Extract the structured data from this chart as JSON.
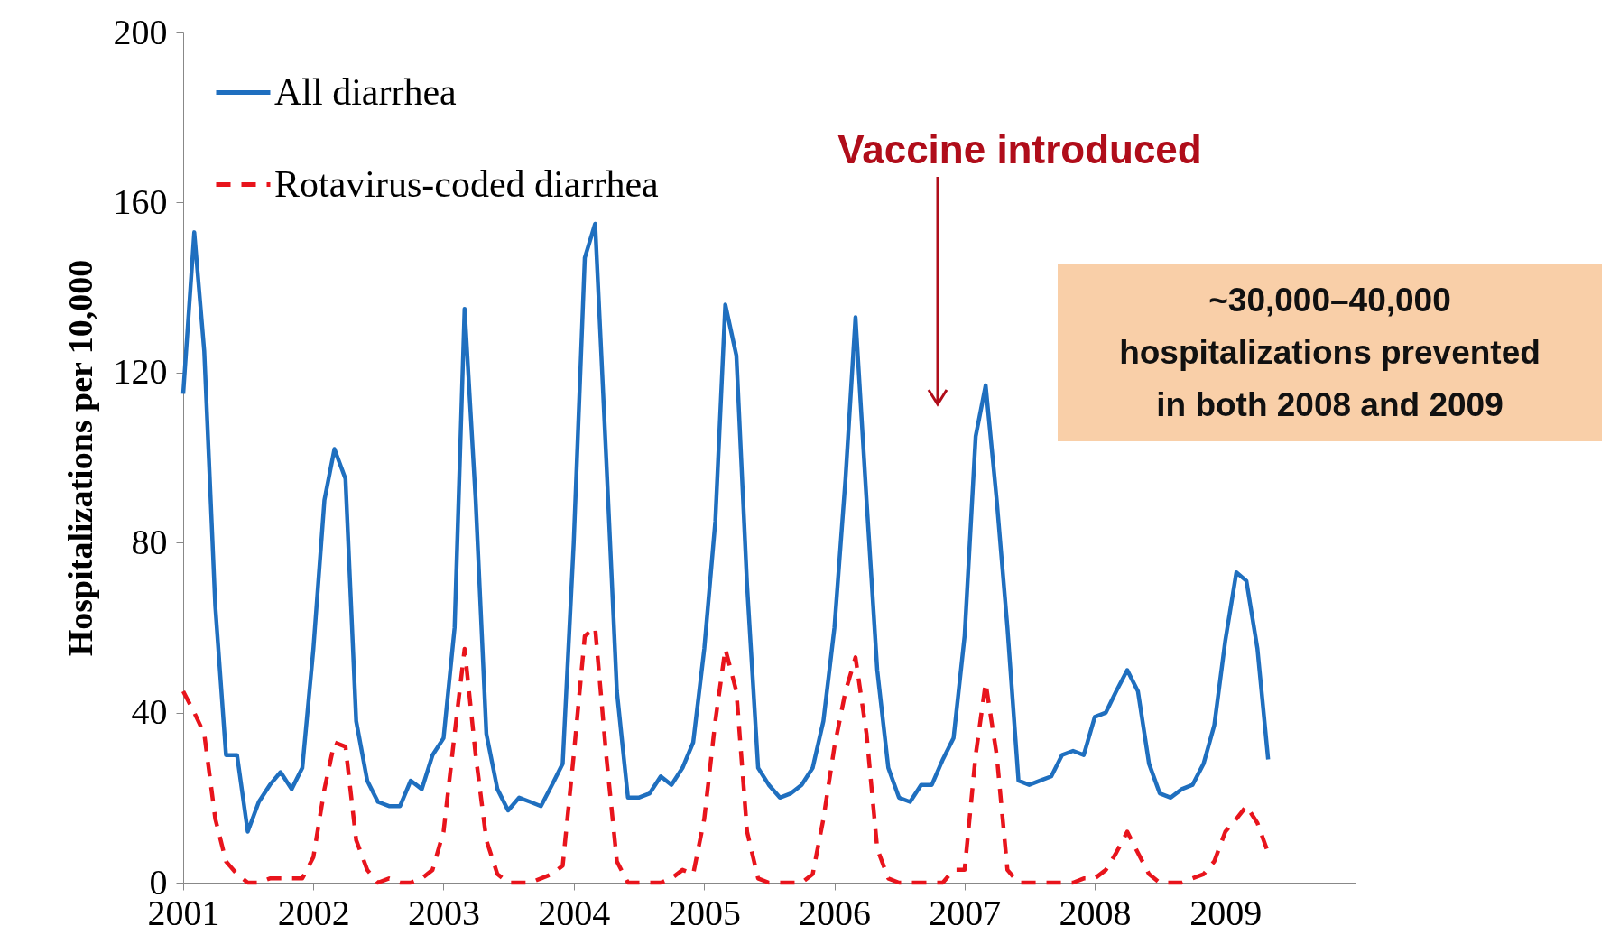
{
  "chart_data": {
    "type": "line",
    "ylabel": "Hospitalizations per 10,000",
    "x": [
      "2001-01",
      "2001-02",
      "2001-03",
      "2001-04",
      "2001-05",
      "2001-06",
      "2001-07",
      "2001-08",
      "2001-09",
      "2001-10",
      "2001-11",
      "2001-12",
      "2002-01",
      "2002-02",
      "2002-03",
      "2002-04",
      "2002-05",
      "2002-06",
      "2002-07",
      "2002-08",
      "2002-09",
      "2002-10",
      "2002-11",
      "2002-12",
      "2003-01",
      "2003-02",
      "2003-03",
      "2003-04",
      "2003-05",
      "2003-06",
      "2003-07",
      "2003-08",
      "2003-09",
      "2003-10",
      "2003-11",
      "2003-12",
      "2004-01",
      "2004-02",
      "2004-03",
      "2004-04",
      "2004-05",
      "2004-06",
      "2004-07",
      "2004-08",
      "2004-09",
      "2004-10",
      "2004-11",
      "2004-12",
      "2005-01",
      "2005-02",
      "2005-03",
      "2005-04",
      "2005-05",
      "2005-06",
      "2005-07",
      "2005-08",
      "2005-09",
      "2005-10",
      "2005-11",
      "2005-12",
      "2006-01",
      "2006-02",
      "2006-03",
      "2006-04",
      "2006-05",
      "2006-06",
      "2006-07",
      "2006-08",
      "2006-09",
      "2006-10",
      "2006-11",
      "2006-12",
      "2007-01",
      "2007-02",
      "2007-03",
      "2007-04",
      "2007-05",
      "2007-06",
      "2007-07",
      "2007-08",
      "2007-09",
      "2007-10",
      "2007-11",
      "2007-12",
      "2008-01",
      "2008-02",
      "2008-03",
      "2008-04",
      "2008-05",
      "2008-06",
      "2008-07",
      "2008-08",
      "2008-09",
      "2008-10",
      "2008-11",
      "2008-12",
      "2009-01",
      "2009-02",
      "2009-03",
      "2009-04",
      "2009-05"
    ],
    "series": [
      {
        "name": "All diarrhea",
        "color": "#1f6fbf",
        "line_style": "solid",
        "values": [
          115,
          153,
          125,
          65,
          30,
          30,
          12,
          19,
          23,
          26,
          22,
          27,
          55,
          90,
          102,
          95,
          38,
          24,
          19,
          18,
          18,
          24,
          22,
          30,
          34,
          60,
          135,
          90,
          35,
          22,
          17,
          20,
          19,
          18,
          23,
          28,
          80,
          147,
          155,
          100,
          45,
          20,
          20,
          21,
          25,
          23,
          27,
          33,
          55,
          85,
          136,
          124,
          70,
          27,
          23,
          20,
          21,
          23,
          27,
          38,
          60,
          95,
          133,
          90,
          50,
          27,
          20,
          19,
          23,
          23,
          29,
          34,
          58,
          105,
          117,
          90,
          60,
          24,
          23,
          24,
          25,
          30,
          31,
          30,
          39,
          40,
          45,
          50,
          45,
          28,
          21,
          20,
          22,
          23,
          28,
          37,
          57,
          73,
          71,
          55,
          29
        ]
      },
      {
        "name": "Rotavirus-coded diarrhea",
        "color": "#e8141c",
        "line_style": "dashed",
        "values": [
          45,
          40,
          35,
          15,
          5,
          2,
          0,
          0,
          1,
          1,
          1,
          1,
          6,
          22,
          33,
          32,
          10,
          3,
          0,
          1,
          0,
          0,
          1,
          3,
          12,
          35,
          55,
          30,
          10,
          2,
          0,
          0,
          0,
          1,
          2,
          4,
          30,
          58,
          60,
          30,
          5,
          0,
          0,
          0,
          0,
          1,
          3,
          2,
          15,
          38,
          55,
          45,
          12,
          1,
          0,
          0,
          0,
          0,
          2,
          15,
          32,
          45,
          53,
          35,
          8,
          1,
          0,
          0,
          0,
          0,
          0,
          3,
          3,
          30,
          47,
          30,
          3,
          0,
          0,
          0,
          0,
          0,
          0,
          1,
          1,
          3,
          7,
          12,
          7,
          2,
          0,
          0,
          0,
          1,
          2,
          5,
          12,
          15,
          18,
          14,
          7
        ]
      }
    ],
    "xlim": [
      "2001-01",
      "2010-01"
    ],
    "xticks": [
      {
        "value": "2001",
        "label": "2001"
      },
      {
        "value": "2002",
        "label": "2002"
      },
      {
        "value": "2003",
        "label": "2003"
      },
      {
        "value": "2004",
        "label": "2004"
      },
      {
        "value": "2005",
        "label": "2005"
      },
      {
        "value": "2006",
        "label": "2006"
      },
      {
        "value": "2007",
        "label": "2007"
      },
      {
        "value": "2008",
        "label": "2008"
      },
      {
        "value": "2009",
        "label": "2009"
      },
      {
        "value": "2010",
        "label": null
      }
    ],
    "ylim": [
      0,
      200
    ],
    "yticks": [
      0,
      40,
      80,
      120,
      160,
      200
    ],
    "legend": "top left",
    "grid": false,
    "annotations": [
      "Vaccine introduced",
      "~30,000–40,000\nhospitalizations prevented\nin both 2008 and 2009"
    ]
  }
}
